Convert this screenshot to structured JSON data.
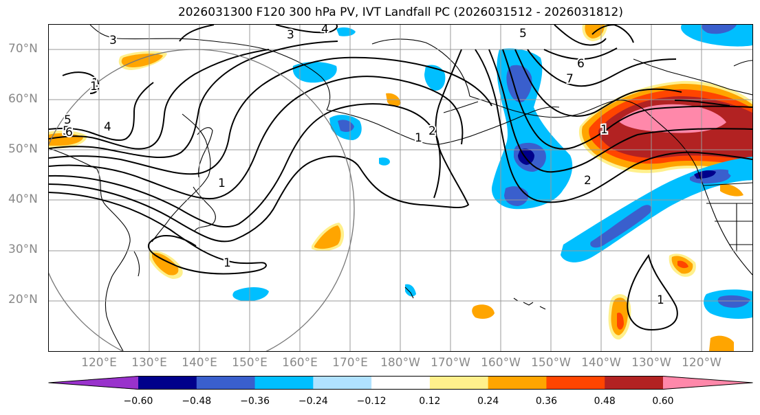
{
  "title": "2026031300 F120 300 hPa PV, IVT Landfall PC (2026031512 - 2026031812)",
  "lat_labels": [
    "70°N",
    "60°N",
    "50°N",
    "40°N",
    "30°N",
    "20°N"
  ],
  "lon_labels": [
    "120°E",
    "130°E",
    "140°E",
    "150°E",
    "160°E",
    "170°E",
    "180°W",
    "170°W",
    "160°W",
    "150°W",
    "140°W",
    "130°W",
    "120°W"
  ],
  "contour_labels": [
    "3",
    "3",
    "4",
    "5",
    "2",
    "1",
    "5",
    "6",
    "4",
    "1",
    "1",
    "2",
    "6",
    "7",
    "5",
    "1",
    "1",
    "1",
    "1"
  ],
  "colorbar": {
    "levels": [
      "−0.60",
      "−0.48",
      "−0.36",
      "−0.24",
      "−0.12",
      "0.12",
      "0.24",
      "0.36",
      "0.48",
      "0.60"
    ],
    "colors": [
      "#9932cc",
      "#00008b",
      "#3a5fcd",
      "#00bfff",
      "#b0e2ff",
      "#ffffff",
      "#fff08c",
      "#ffa500",
      "#ff4500",
      "#b22222",
      "#ff88aa"
    ]
  }
}
